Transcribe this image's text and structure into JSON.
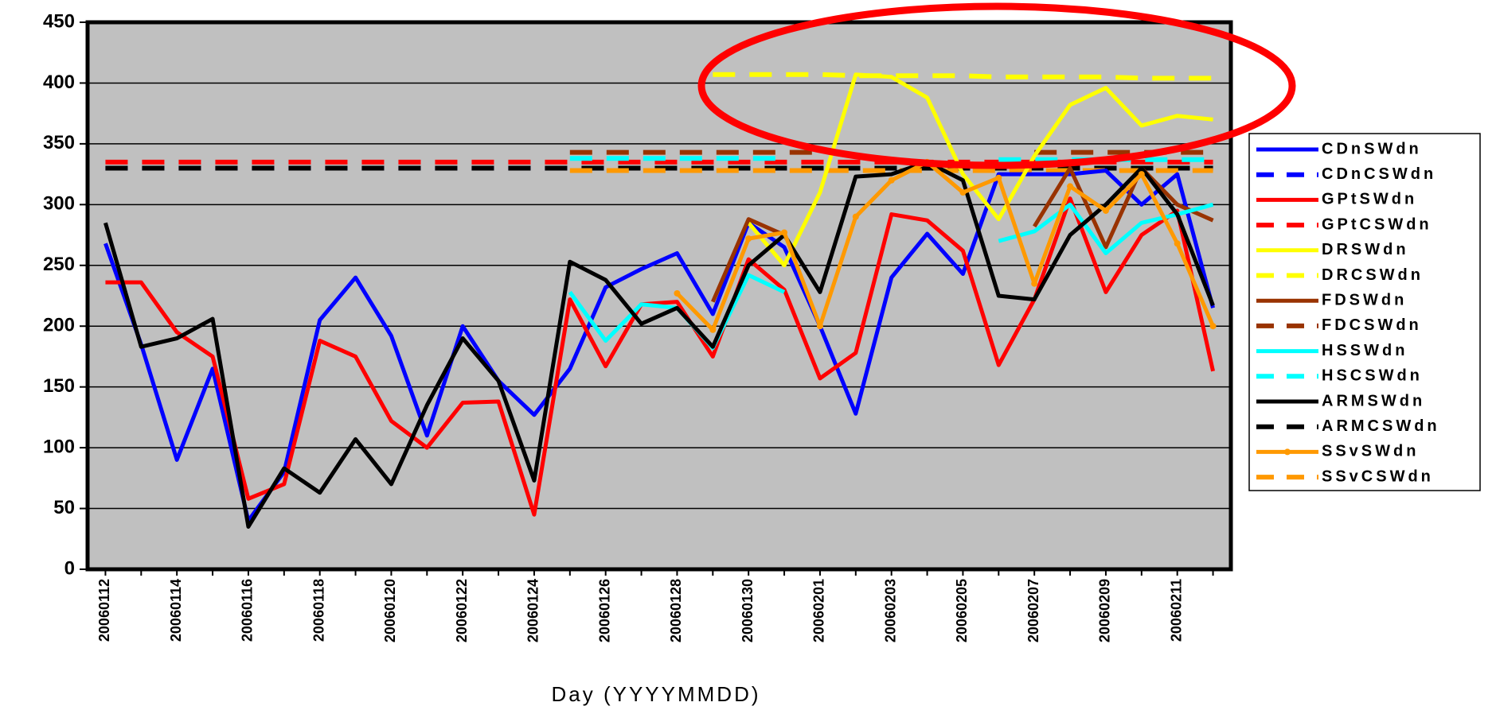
{
  "chart_data": {
    "type": "line",
    "x_label": "Day (YYYYMMDD)",
    "categories": [
      "20060112",
      null,
      "20060114",
      null,
      "20060116",
      null,
      "20060118",
      null,
      "20060120",
      null,
      "20060122",
      null,
      "20060124",
      null,
      "20060126",
      null,
      "20060128",
      null,
      "20060130",
      null,
      "20060201",
      null,
      "20060203",
      null,
      "20060205",
      null,
      "20060207",
      null,
      "20060209",
      null,
      "20060211",
      null
    ],
    "ylim": [
      0,
      450
    ],
    "yticks": [
      0,
      50,
      100,
      150,
      200,
      250,
      300,
      350,
      400,
      450
    ],
    "grid": true,
    "legend": "right",
    "series": [
      {
        "name": "CDnSWdn",
        "color": "#0000ff",
        "dash": false,
        "values": [
          268,
          185,
          90,
          165,
          40,
          80,
          205,
          240,
          192,
          110,
          200,
          155,
          127,
          165,
          232,
          247,
          260,
          210,
          285,
          265,
          200,
          128,
          240,
          276,
          243,
          325,
          325,
          325,
          328,
          300,
          325,
          215
        ]
      },
      {
        "name": "CDnCSWdn",
        "color": "#0000ff",
        "dash": true,
        "values": [
          330,
          330,
          330,
          330,
          330,
          330,
          330,
          330,
          330,
          330,
          330,
          330,
          330,
          330,
          330,
          330,
          330,
          330,
          330,
          330,
          330,
          330,
          330,
          330,
          330,
          330,
          330,
          330,
          330,
          330,
          330,
          330
        ]
      },
      {
        "name": "GPtSWdn",
        "color": "#ff0000",
        "dash": false,
        "values": [
          236,
          236,
          195,
          175,
          58,
          70,
          188,
          175,
          122,
          100,
          137,
          138,
          45,
          222,
          167,
          218,
          220,
          175,
          255,
          230,
          157,
          178,
          292,
          287,
          262,
          168,
          222,
          305,
          228,
          275,
          295,
          163
        ]
      },
      {
        "name": "GPtCSWdn",
        "color": "#ff0000",
        "dash": true,
        "values": [
          335,
          335,
          335,
          335,
          335,
          335,
          335,
          335,
          335,
          335,
          335,
          335,
          335,
          335,
          335,
          335,
          335,
          335,
          335,
          335,
          335,
          335,
          335,
          335,
          335,
          335,
          335,
          335,
          335,
          335,
          335,
          335
        ]
      },
      {
        "name": "DRSWdn",
        "color": "#ffff00",
        "dash": false,
        "values": [
          null,
          null,
          null,
          null,
          null,
          null,
          null,
          null,
          null,
          null,
          null,
          null,
          null,
          null,
          null,
          null,
          null,
          null,
          285,
          250,
          310,
          407,
          405,
          388,
          325,
          288,
          340,
          382,
          396,
          365,
          373,
          370
        ]
      },
      {
        "name": "DRCSWdn",
        "color": "#ffff00",
        "dash": true,
        "values": [
          null,
          null,
          null,
          null,
          null,
          null,
          null,
          null,
          null,
          null,
          null,
          null,
          null,
          null,
          null,
          null,
          null,
          407,
          407,
          407,
          407,
          406,
          406,
          406,
          406,
          405,
          405,
          405,
          405,
          404,
          404,
          404
        ]
      },
      {
        "name": "FDSWdn",
        "color": "#993300",
        "dash": false,
        "values": [
          null,
          null,
          null,
          null,
          null,
          null,
          null,
          null,
          null,
          null,
          null,
          null,
          null,
          null,
          null,
          null,
          null,
          220,
          288,
          275,
          null,
          null,
          null,
          null,
          null,
          null,
          282,
          330,
          265,
          330,
          300,
          287
        ]
      },
      {
        "name": "FDCSWdn",
        "color": "#993300",
        "dash": true,
        "values": [
          null,
          null,
          null,
          null,
          null,
          null,
          null,
          null,
          null,
          null,
          null,
          null,
          null,
          343,
          343,
          343,
          343,
          343,
          343,
          343,
          343,
          null,
          null,
          null,
          null,
          null,
          343,
          343,
          343,
          343,
          343,
          343
        ]
      },
      {
        "name": "HSSWdn",
        "color": "#00ffff",
        "dash": false,
        "values": [
          null,
          null,
          null,
          null,
          null,
          null,
          null,
          null,
          null,
          null,
          null,
          null,
          null,
          228,
          188,
          218,
          215,
          182,
          242,
          228,
          null,
          null,
          null,
          null,
          null,
          270,
          278,
          300,
          260,
          285,
          292,
          300
        ]
      },
      {
        "name": "HSCSWdn",
        "color": "#00ffff",
        "dash": true,
        "values": [
          null,
          null,
          null,
          null,
          null,
          null,
          null,
          null,
          null,
          null,
          null,
          null,
          null,
          338,
          338,
          338,
          338,
          338,
          338,
          338,
          null,
          null,
          null,
          null,
          null,
          337,
          337,
          337,
          337,
          337,
          337,
          337
        ]
      },
      {
        "name": "ARMSWdn",
        "color": "#000000",
        "dash": false,
        "values": [
          285,
          183,
          190,
          206,
          35,
          83,
          63,
          107,
          70,
          135,
          190,
          155,
          73,
          253,
          238,
          202,
          215,
          183,
          250,
          275,
          228,
          323,
          325,
          335,
          320,
          225,
          222,
          275,
          300,
          330,
          292,
          217
        ]
      },
      {
        "name": "ARMCSWdn",
        "color": "#000000",
        "dash": true,
        "values": [
          330,
          330,
          330,
          330,
          330,
          330,
          330,
          330,
          330,
          330,
          330,
          330,
          330,
          330,
          330,
          330,
          330,
          330,
          330,
          330,
          330,
          330,
          330,
          330,
          330,
          330,
          330,
          330,
          330,
          330,
          330,
          330
        ]
      },
      {
        "name": "SSvSWdn",
        "color": "#ff9900",
        "dash": false,
        "marker": "circle",
        "values": [
          null,
          null,
          null,
          null,
          null,
          null,
          null,
          null,
          null,
          null,
          null,
          null,
          null,
          null,
          null,
          null,
          227,
          197,
          272,
          277,
          200,
          290,
          320,
          335,
          310,
          322,
          235,
          315,
          295,
          325,
          268,
          200
        ]
      },
      {
        "name": "SSvCSWdn",
        "color": "#ff9900",
        "dash": true,
        "values": [
          null,
          null,
          null,
          null,
          null,
          null,
          null,
          null,
          null,
          null,
          null,
          null,
          null,
          328,
          328,
          328,
          328,
          328,
          328,
          328,
          328,
          328,
          328,
          328,
          328,
          328,
          328,
          328,
          328,
          328,
          328,
          328
        ]
      }
    ]
  }
}
